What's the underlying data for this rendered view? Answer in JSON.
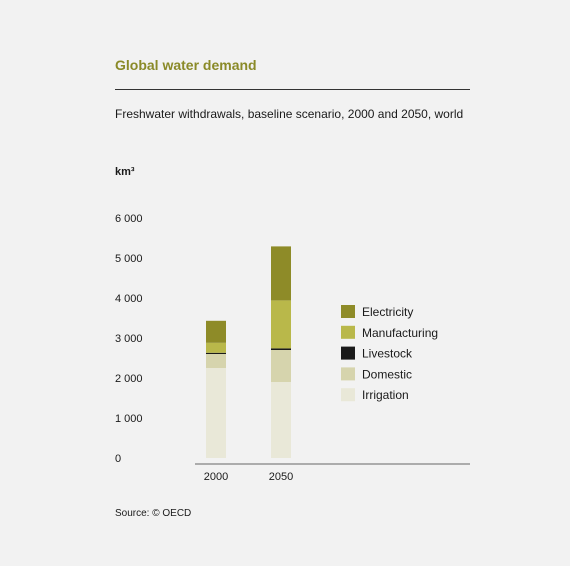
{
  "header": {
    "title": "Global water demand",
    "subtitle": "Freshwater withdrawals, baseline scenario, 2000 and 2050, world"
  },
  "footer": {
    "source": "Source: © OECD"
  },
  "colors": {
    "title": "#8a8a28",
    "electricity": "#8e8b28",
    "manufacturing": "#b9b84a",
    "livestock": "#1a1a1a",
    "domestic": "#d6d4ad",
    "irrigation": "#e9e8d8"
  },
  "chart_data": {
    "type": "bar",
    "stacked": true,
    "title": "Global water demand",
    "subtitle": "Freshwater withdrawals, baseline scenario, 2000 and 2050, world",
    "ylabel": "km³",
    "xlabel": "",
    "ylim": [
      0,
      6000
    ],
    "yticks": [
      0,
      1000,
      2000,
      3000,
      4000,
      5000,
      6000
    ],
    "ytick_labels": [
      "0",
      "1 000",
      "2 000",
      "3 000",
      "4 000",
      "5 000",
      "6 000"
    ],
    "categories": [
      "2000",
      "2050"
    ],
    "grid": false,
    "legend_position": "right",
    "series": [
      {
        "name": "Irrigation",
        "color": "#e9e8d8",
        "values": [
          2250,
          1900
        ]
      },
      {
        "name": "Domestic",
        "color": "#d6d4ad",
        "values": [
          350,
          800
        ]
      },
      {
        "name": "Livestock",
        "color": "#1a1a1a",
        "values": [
          30,
          40
        ]
      },
      {
        "name": "Manufacturing",
        "color": "#b9b84a",
        "values": [
          250,
          1200
        ]
      },
      {
        "name": "Electricity",
        "color": "#8e8b28",
        "values": [
          550,
          1350
        ]
      }
    ],
    "legend_order": [
      "Electricity",
      "Manufacturing",
      "Livestock",
      "Domestic",
      "Irrigation"
    ]
  }
}
